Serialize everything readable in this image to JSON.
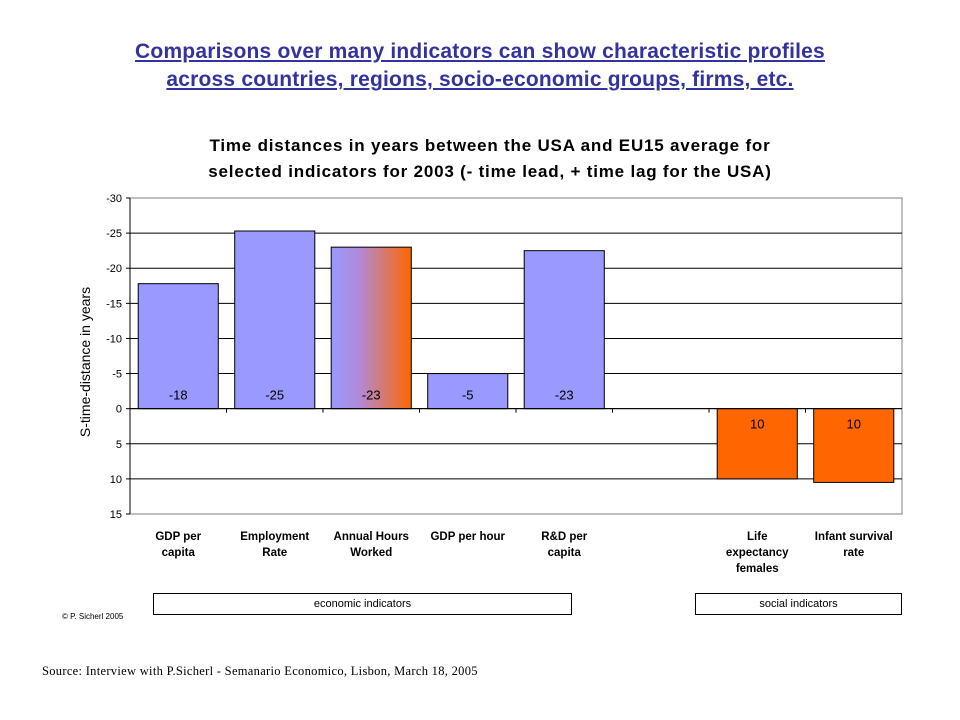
{
  "slide": {
    "title_line1": "Comparisons over many indicators can show characteristic profiles",
    "title_line2": "across countries, regions, socio-economic groups, firms, etc."
  },
  "chart_data": {
    "type": "bar",
    "title_line1": "Time distances in years between the USA and EU15 average for",
    "title_line2": "selected indicators for 2003 (- time lead, + time lag for the USA)",
    "ylabel": "S-time-distance in years",
    "ylim": [
      -30,
      15
    ],
    "y_ticks": [
      -30,
      -25,
      -20,
      -15,
      -10,
      -5,
      0,
      5,
      10,
      15
    ],
    "y_axis_reversed": true,
    "grid": true,
    "categories": [
      [
        "GDP per",
        "capita"
      ],
      [
        "Employment",
        "Rate"
      ],
      [
        "Annual Hours",
        "Worked"
      ],
      [
        "GDP per hour"
      ],
      [
        "R&D per",
        "capita"
      ],
      [],
      [
        "Life",
        "expectancy",
        "females"
      ],
      [
        "Infant survival",
        "rate"
      ]
    ],
    "values": [
      -17.8,
      -25.3,
      -23,
      -5,
      -22.5,
      null,
      10,
      10.5
    ],
    "data_labels": [
      "-18",
      "-25",
      "-23",
      "-5",
      "-23",
      "",
      "10",
      "10"
    ],
    "bar_colors": [
      "#9999ff",
      "#9999ff",
      "gradient",
      "#9999ff",
      "#9999ff",
      "",
      "#ff6600",
      "#ff6600"
    ],
    "gradient_colors": [
      "#9999ff",
      "#ff6600"
    ]
  },
  "groups": {
    "economic": "economic indicators",
    "social": "social indicators"
  },
  "copyright": "© P. Sicherl 2005",
  "source": "Source: Interview with P.Sicherl - Semanario Economico, Lisbon, March 18, 2005"
}
